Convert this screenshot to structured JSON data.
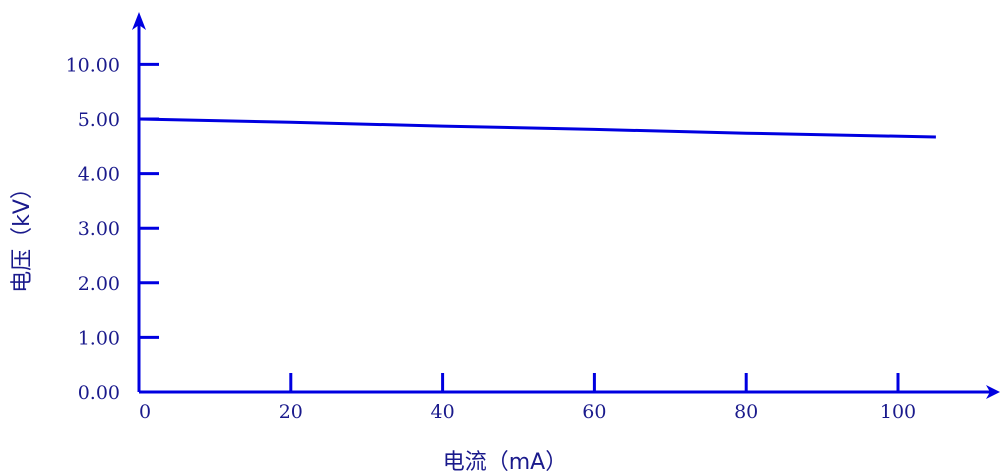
{
  "chart_data": {
    "type": "line",
    "title": "",
    "xlabel": "电流（mA）",
    "ylabel": "电压（kV）",
    "x_ticks": [
      0,
      20,
      40,
      60,
      80,
      100
    ],
    "x_tick_labels": [
      "0",
      "20",
      "40",
      "60",
      "80",
      "100"
    ],
    "y_tick_labels": [
      "0.00",
      "1.00",
      "2.00",
      "3.00",
      "4.00",
      "5.00",
      "10.00"
    ],
    "y_tick_note": "y axis ticks are evenly spaced; the top tick is labeled 10.00",
    "xlim": [
      0,
      112
    ],
    "grid": false,
    "series": [
      {
        "x": [
          0,
          20,
          40,
          60,
          80,
          105
        ],
        "y": [
          5.0,
          4.94,
          4.87,
          4.81,
          4.74,
          4.67
        ]
      }
    ],
    "colors": {
      "axis": "#0000e0",
      "line": "#0000e0",
      "text": "#1a1a8c"
    }
  }
}
